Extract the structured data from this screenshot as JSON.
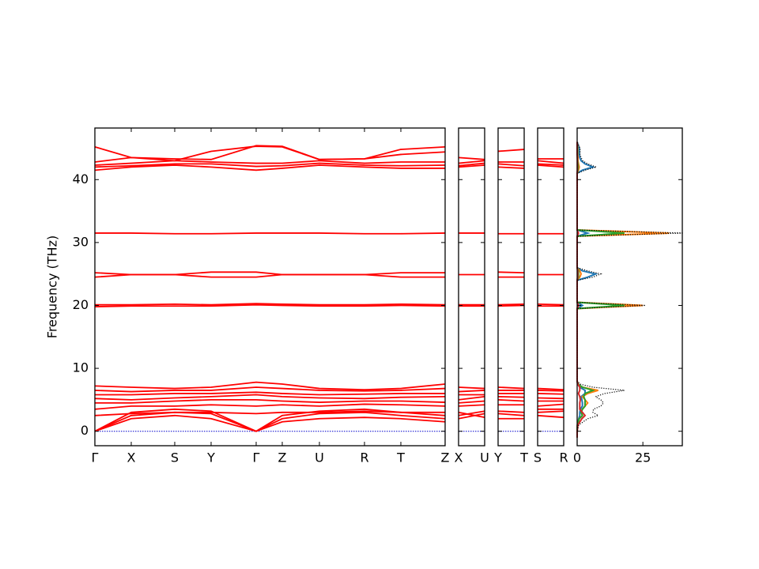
{
  "chart_data": [
    {
      "type": "line",
      "ylabel": "Frequency (THz)",
      "color": "#ff0000",
      "x": [
        0,
        0.46,
        1.01,
        1.47,
        2.04,
        2.37,
        2.84,
        3.41,
        3.87,
        4.43
      ],
      "xlim": [
        0,
        4.43
      ],
      "xticks": [
        {
          "value": 0,
          "label": "Γ"
        },
        {
          "value": 0.46,
          "label": "X"
        },
        {
          "value": 1.01,
          "label": "S"
        },
        {
          "value": 1.47,
          "label": "Y"
        },
        {
          "value": 2.04,
          "label": "Γ"
        },
        {
          "value": 2.37,
          "label": "Z"
        },
        {
          "value": 2.84,
          "label": "U"
        },
        {
          "value": 3.41,
          "label": "R"
        },
        {
          "value": 3.87,
          "label": "T"
        },
        {
          "value": 4.43,
          "label": "Z"
        }
      ],
      "ylim": [
        -2.3,
        48.2
      ],
      "yticks": [
        0,
        10,
        20,
        30,
        40
      ],
      "series": [
        {
          "values": [
            0,
            2,
            2.5,
            2,
            0,
            1.5,
            2,
            2.2,
            2,
            1.5
          ]
        },
        {
          "values": [
            0,
            2.5,
            3,
            2.8,
            0,
            2.0,
            2.8,
            3,
            2.5,
            2.0
          ]
        },
        {
          "values": [
            0,
            3,
            3.5,
            3.2,
            0,
            2.5,
            3.2,
            3.5,
            3,
            2.5
          ]
        },
        {
          "values": [
            2.5,
            2.8,
            3,
            3,
            2.8,
            3,
            3,
            3.2,
            3,
            3
          ]
        },
        {
          "values": [
            3.5,
            4,
            4,
            4.2,
            4,
            4.2,
            4,
            4.3,
            4.2,
            4
          ]
        },
        {
          "values": [
            4.5,
            4.5,
            4.8,
            5,
            5,
            4.8,
            4.6,
            4.8,
            4.8,
            4.6
          ]
        },
        {
          "values": [
            5.2,
            5,
            5.3,
            5.5,
            5.8,
            5.5,
            5.3,
            5.2,
            5.4,
            5.5
          ]
        },
        {
          "values": [
            5.8,
            5.8,
            6,
            6,
            6.2,
            6,
            5.8,
            5.9,
            6,
            6
          ]
        },
        {
          "values": [
            6.5,
            6.3,
            6.5,
            6.5,
            7,
            6.8,
            6.5,
            6.4,
            6.5,
            6.8
          ]
        },
        {
          "values": [
            7.2,
            7,
            6.8,
            7,
            7.8,
            7.5,
            6.8,
            6.6,
            6.8,
            7.5
          ]
        },
        {
          "values": [
            19.8,
            19.9,
            19.9,
            19.9,
            20.1,
            20,
            19.9,
            19.9,
            20,
            19.9
          ]
        },
        {
          "values": [
            20.1,
            20.1,
            20.2,
            20.1,
            20.3,
            20.2,
            20.1,
            20.1,
            20.2,
            20.1
          ]
        },
        {
          "values": [
            24.5,
            24.9,
            24.9,
            24.5,
            24.5,
            24.9,
            24.9,
            24.9,
            24.5,
            24.5
          ]
        },
        {
          "values": [
            25.2,
            24.9,
            24.9,
            25.3,
            25.3,
            24.9,
            24.9,
            24.9,
            25.2,
            25.2
          ]
        },
        {
          "values": [
            31.5,
            31.5,
            31.4,
            31.4,
            31.5,
            31.5,
            31.5,
            31.4,
            31.4,
            31.5
          ]
        },
        {
          "values": [
            41.5,
            42,
            42.3,
            42,
            41.5,
            41.8,
            42.3,
            42,
            41.8,
            41.8
          ]
        },
        {
          "values": [
            42,
            42.2,
            42.5,
            42.5,
            42.1,
            42.2,
            42.6,
            42.3,
            42.2,
            42.3
          ]
        },
        {
          "values": [
            42.3,
            42.6,
            43,
            42.8,
            42.6,
            42.6,
            43,
            42.6,
            42.8,
            42.8
          ]
        },
        {
          "values": [
            42.8,
            43.5,
            43,
            44.5,
            45.3,
            45.2,
            43.2,
            43.3,
            44,
            44.4
          ]
        },
        {
          "values": [
            45.2,
            43.5,
            43.3,
            43.2,
            45.4,
            45.3,
            43.2,
            43.3,
            44.8,
            45.2
          ]
        }
      ]
    },
    {
      "type": "line",
      "color": "#ff0000",
      "x": [
        0,
        0.33
      ],
      "xlim": [
        0,
        0.33
      ],
      "xticks": [
        {
          "value": 0,
          "label": "X"
        },
        {
          "value": 0.33,
          "label": "U"
        }
      ],
      "series": [
        {
          "values": [
            2,
            2.8
          ]
        },
        {
          "values": [
            2.5,
            3.2
          ]
        },
        {
          "values": [
            3,
            2.2
          ]
        },
        {
          "values": [
            4,
            4.2
          ]
        },
        {
          "values": [
            4.5,
            4.8
          ]
        },
        {
          "values": [
            5,
            5.5
          ]
        },
        {
          "values": [
            5.8,
            5.8
          ]
        },
        {
          "values": [
            6.3,
            6.5
          ]
        },
        {
          "values": [
            7,
            6.8
          ]
        },
        {
          "values": [
            19.9,
            19.9
          ]
        },
        {
          "values": [
            20.1,
            20.1
          ]
        },
        {
          "values": [
            24.9,
            24.9
          ]
        },
        {
          "values": [
            31.5,
            31.5
          ]
        },
        {
          "values": [
            42,
            42.3
          ]
        },
        {
          "values": [
            42.2,
            42.6
          ]
        },
        {
          "values": [
            42.6,
            43
          ]
        },
        {
          "values": [
            43.5,
            43.2
          ]
        }
      ]
    },
    {
      "type": "line",
      "color": "#ff0000",
      "x": [
        0,
        0.33
      ],
      "xlim": [
        0,
        0.33
      ],
      "xticks": [
        {
          "value": 0,
          "label": "Y"
        },
        {
          "value": 0.33,
          "label": "T"
        }
      ],
      "series": [
        {
          "values": [
            2,
            2
          ]
        },
        {
          "values": [
            2.8,
            2.5
          ]
        },
        {
          "values": [
            3.2,
            3
          ]
        },
        {
          "values": [
            4.2,
            4.2
          ]
        },
        {
          "values": [
            5,
            4.8
          ]
        },
        {
          "values": [
            5.5,
            5.4
          ]
        },
        {
          "values": [
            6,
            6
          ]
        },
        {
          "values": [
            6.5,
            6.5
          ]
        },
        {
          "values": [
            7,
            6.8
          ]
        },
        {
          "values": [
            19.9,
            20
          ]
        },
        {
          "values": [
            20.1,
            20.2
          ]
        },
        {
          "values": [
            24.5,
            24.5
          ]
        },
        {
          "values": [
            25.3,
            25.2
          ]
        },
        {
          "values": [
            31.4,
            31.4
          ]
        },
        {
          "values": [
            42,
            41.8
          ]
        },
        {
          "values": [
            42.5,
            42.2
          ]
        },
        {
          "values": [
            42.8,
            42.8
          ]
        },
        {
          "values": [
            44.5,
            44.8
          ]
        }
      ]
    },
    {
      "type": "line",
      "color": "#ff0000",
      "x": [
        0,
        0.33
      ],
      "xlim": [
        0,
        0.33
      ],
      "xticks": [
        {
          "value": 0,
          "label": "S"
        },
        {
          "value": 0.33,
          "label": "R"
        }
      ],
      "series": [
        {
          "values": [
            2.5,
            2.2
          ]
        },
        {
          "values": [
            3,
            3.2
          ]
        },
        {
          "values": [
            3.5,
            3.5
          ]
        },
        {
          "values": [
            4,
            4.3
          ]
        },
        {
          "values": [
            4.8,
            4.8
          ]
        },
        {
          "values": [
            5.3,
            5.2
          ]
        },
        {
          "values": [
            6,
            5.9
          ]
        },
        {
          "values": [
            6.5,
            6.4
          ]
        },
        {
          "values": [
            6.8,
            6.6
          ]
        },
        {
          "values": [
            19.9,
            19.9
          ]
        },
        {
          "values": [
            20.2,
            20.1
          ]
        },
        {
          "values": [
            24.9,
            24.9
          ]
        },
        {
          "values": [
            31.4,
            31.4
          ]
        },
        {
          "values": [
            42.3,
            42
          ]
        },
        {
          "values": [
            42.5,
            42.3
          ]
        },
        {
          "values": [
            43,
            42.6
          ]
        },
        {
          "values": [
            43.3,
            43.3
          ]
        }
      ]
    },
    {
      "type": "dos",
      "xlim": [
        0,
        40
      ],
      "xticks": [
        0,
        25
      ],
      "y": [
        -1,
        0,
        1,
        2,
        2.5,
        3,
        3.5,
        4,
        4.5,
        5,
        5.5,
        6,
        6.5,
        7,
        7.5,
        8,
        19.5,
        20,
        20.5,
        24,
        24.5,
        25,
        25.5,
        26,
        31,
        31.5,
        32,
        41,
        41.5,
        42,
        42.5,
        43,
        43.5,
        44,
        44.5,
        45,
        45.5,
        46
      ],
      "series": [
        {
          "color": "#1f77b4",
          "values": [
            0,
            0,
            0.1,
            0.6,
            1,
            1,
            1.2,
            2,
            2,
            1.8,
            1.5,
            3,
            3,
            1,
            0.2,
            0,
            0,
            2,
            0,
            0,
            4,
            7,
            2,
            0,
            0,
            4,
            0,
            0,
            2,
            6,
            3,
            1.5,
            1,
            0.8,
            0.8,
            0.8,
            0.4,
            0
          ]
        },
        {
          "color": "#ff7f0e",
          "values": [
            0,
            0,
            0.1,
            0.8,
            2,
            1.5,
            2,
            3,
            4,
            3,
            2,
            4,
            8,
            2,
            0.3,
            0,
            0,
            25,
            0,
            0,
            1,
            1.5,
            1,
            0,
            0,
            35,
            0,
            0,
            0.5,
            0.8,
            0.5,
            0.3,
            0.3,
            0.2,
            0.2,
            0.2,
            0.1,
            0
          ]
        },
        {
          "color": "#2ca02c",
          "values": [
            0,
            0,
            0.1,
            0.8,
            2,
            1.5,
            2,
            3,
            3,
            3,
            2.5,
            3,
            6,
            2,
            0.3,
            0,
            0,
            18,
            0,
            0,
            0.5,
            0.5,
            0.5,
            0,
            0,
            18,
            0,
            0,
            0.3,
            0.4,
            0.3,
            0.2,
            0.1,
            0.1,
            0.1,
            0.1,
            0,
            0
          ]
        },
        {
          "color": "#d62728",
          "values": [
            0,
            0,
            0.3,
            1.8,
            3,
            2,
            1,
            1,
            1,
            1.2,
            1,
            0.5,
            1,
            1,
            0.2,
            0,
            0,
            0.5,
            0,
            0,
            0.2,
            0.2,
            0.2,
            0,
            0,
            0.5,
            0,
            0,
            0.1,
            0.1,
            0.1,
            0.1,
            0.1,
            0,
            0,
            0,
            0,
            0
          ]
        },
        {
          "color": "#000000",
          "dotted": true,
          "values": [
            0,
            0,
            0.6,
            4,
            8,
            6,
            6.2,
            9,
            10,
            9,
            7,
            10.5,
            18,
            6,
            1,
            0,
            0,
            26,
            0,
            0,
            6,
            9,
            4,
            0,
            0,
            40,
            0,
            0,
            3,
            7.3,
            4,
            2.1,
            1.5,
            1.1,
            1.1,
            1.1,
            0.5,
            0
          ]
        }
      ]
    }
  ]
}
